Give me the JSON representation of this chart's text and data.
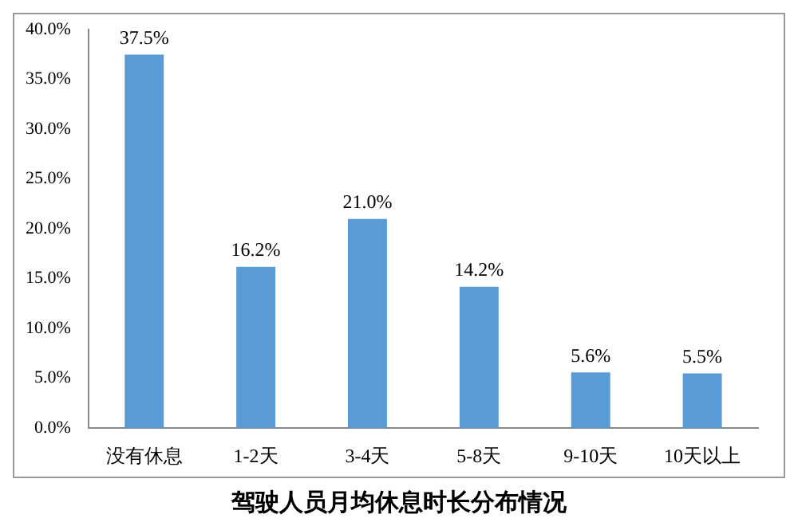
{
  "chart_data": {
    "type": "bar",
    "title": "驾驶人员月均休息时长分布情况",
    "categories": [
      "没有休息",
      "1-2天",
      "3-4天",
      "5-8天",
      "9-10天",
      "10天以上"
    ],
    "values": [
      37.5,
      16.2,
      21.0,
      14.2,
      5.6,
      5.5
    ],
    "value_labels": [
      "37.5%",
      "16.2%",
      "21.0%",
      "14.2%",
      "5.6%",
      "5.5%"
    ],
    "color": "#5b9bd5",
    "ylim": [
      0,
      40
    ],
    "yticks": [
      {
        "value": 0,
        "label": "0.0%"
      },
      {
        "value": 5,
        "label": "5.0%"
      },
      {
        "value": 10,
        "label": "10.0%"
      },
      {
        "value": 15,
        "label": "15.0%"
      },
      {
        "value": 20,
        "label": "20.0%"
      },
      {
        "value": 25,
        "label": "25.0%"
      },
      {
        "value": 30,
        "label": "30.0%"
      },
      {
        "value": 35,
        "label": "35.0%"
      },
      {
        "value": 40,
        "label": "40.0%"
      }
    ],
    "grid": false,
    "legend": false
  }
}
